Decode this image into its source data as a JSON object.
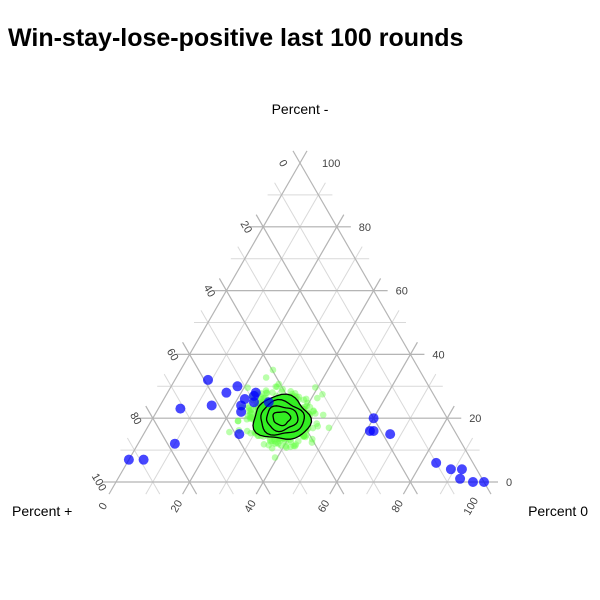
{
  "chart_data": {
    "type": "scatter",
    "title": "Win-stay-lose-positive last 100 rounds",
    "axes": {
      "top": "Percent -",
      "left": "Percent +",
      "right": "Percent 0"
    },
    "ticks": [
      "0",
      "20",
      "40",
      "60",
      "80",
      "100"
    ],
    "tick_values": [
      0,
      20,
      40,
      60,
      80,
      100
    ],
    "range": [
      0,
      100
    ],
    "grid": true,
    "legend": "none",
    "colors": {
      "points": "#0000ff",
      "cloud": "#66ff44",
      "contour_fill": "#33ee22",
      "contour_line": "#000000",
      "grid_major": "#b5b5b5",
      "grid_minor": "#d9d9d9"
    },
    "points": [
      {
        "plus": 3,
        "zero": 97,
        "minus": 0
      },
      {
        "plus": 0,
        "zero": 100,
        "minus": 0
      },
      {
        "plus": 6,
        "zero": 93,
        "minus": 1
      },
      {
        "plus": 4,
        "zero": 92,
        "minus": 4
      },
      {
        "plus": 7,
        "zero": 89,
        "minus": 4
      },
      {
        "plus": 10,
        "zero": 84,
        "minus": 6
      },
      {
        "plus": 18,
        "zero": 67,
        "minus": 15
      },
      {
        "plus": 22,
        "zero": 62,
        "minus": 16
      },
      {
        "plus": 23,
        "zero": 61,
        "minus": 16
      },
      {
        "plus": 20,
        "zero": 60,
        "minus": 20
      },
      {
        "plus": 50,
        "zero": 25,
        "minus": 25
      },
      {
        "plus": 49,
        "zero": 24,
        "minus": 27
      },
      {
        "plus": 52,
        "zero": 22,
        "minus": 26
      },
      {
        "plus": 46,
        "zero": 29,
        "minus": 25
      },
      {
        "plus": 54,
        "zero": 22,
        "minus": 24
      },
      {
        "plus": 55,
        "zero": 23,
        "minus": 22
      },
      {
        "plus": 48,
        "zero": 24,
        "minus": 28
      },
      {
        "plus": 62,
        "zero": 14,
        "minus": 24
      },
      {
        "plus": 59,
        "zero": 9,
        "minus": 32
      },
      {
        "plus": 56,
        "zero": 16,
        "minus": 28
      },
      {
        "plus": 71,
        "zero": 6,
        "minus": 23
      },
      {
        "plus": 89,
        "zero": 4,
        "minus": 7
      },
      {
        "plus": 93,
        "zero": 0,
        "minus": 7
      },
      {
        "plus": 78,
        "zero": 10,
        "minus": 12
      },
      {
        "plus": 52,
        "zero": 18,
        "minus": 30
      },
      {
        "plus": 59,
        "zero": 26,
        "minus": 15
      }
    ],
    "cloud": {
      "center": {
        "plus": 45,
        "zero": 35,
        "minus": 20
      },
      "n": 700
    },
    "contours": [
      {
        "level": 1,
        "radius": 6.5
      },
      {
        "level": 2,
        "radius": 5.0
      },
      {
        "level": 3,
        "radius": 3.6
      },
      {
        "level": 4,
        "radius": 2.0
      }
    ]
  }
}
